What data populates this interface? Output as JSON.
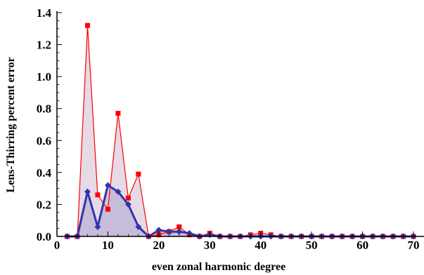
{
  "chart_data": {
    "type": "area",
    "title": "",
    "xlabel": "even zonal harmonic degree",
    "ylabel": "Lens-Thirring percent error",
    "xlim": [
      0,
      70
    ],
    "ylim": [
      0,
      1.4
    ],
    "xticks": [
      "0",
      "10",
      "20",
      "30",
      "40",
      "50",
      "60",
      "70"
    ],
    "yticks": [
      "0.0",
      "0.2",
      "0.4",
      "0.6",
      "0.8",
      "1.0",
      "1.2",
      "1.4"
    ],
    "grid": false,
    "legend": "none",
    "series": [
      {
        "color": "#ff0000",
        "fill": "#e2d4e2",
        "marker": "square",
        "x": [
          2,
          4,
          6,
          8,
          10,
          12,
          14,
          16,
          18,
          20,
          22,
          24,
          26,
          28,
          30,
          32,
          34,
          36,
          38,
          40,
          42,
          44,
          46,
          48,
          50,
          52,
          54,
          56,
          58,
          60,
          62,
          64,
          66,
          68,
          70
        ],
        "values": [
          0.0,
          0.0,
          1.32,
          0.26,
          0.17,
          0.77,
          0.24,
          0.39,
          0.0,
          0.01,
          0.03,
          0.06,
          0.01,
          0.0,
          0.02,
          0.0,
          0.0,
          0.0,
          0.01,
          0.02,
          0.01,
          0.0,
          0.0,
          0.0,
          0.0,
          0.0,
          0.0,
          0.0,
          0.0,
          0.0,
          0.0,
          0.0,
          0.0,
          0.0,
          0.0
        ]
      },
      {
        "color": "#3333aa",
        "fill": "#bcb2d4",
        "marker": "diamond",
        "x": [
          2,
          4,
          6,
          8,
          10,
          12,
          14,
          16,
          18,
          20,
          22,
          24,
          26,
          28,
          30,
          32,
          34,
          36,
          38,
          40,
          42,
          44,
          46,
          48,
          50,
          52,
          54,
          56,
          58,
          60,
          62,
          64,
          66,
          68,
          70
        ],
        "values": [
          0.0,
          0.0,
          0.28,
          0.06,
          0.32,
          0.28,
          0.2,
          0.06,
          0.0,
          0.04,
          0.03,
          0.03,
          0.02,
          0.0,
          0.01,
          0.0,
          0.0,
          0.0,
          0.0,
          0.0,
          0.0,
          0.0,
          0.0,
          0.0,
          0.0,
          0.0,
          0.0,
          0.0,
          0.0,
          0.0,
          0.0,
          0.0,
          0.0,
          0.0,
          0.0
        ]
      }
    ]
  }
}
